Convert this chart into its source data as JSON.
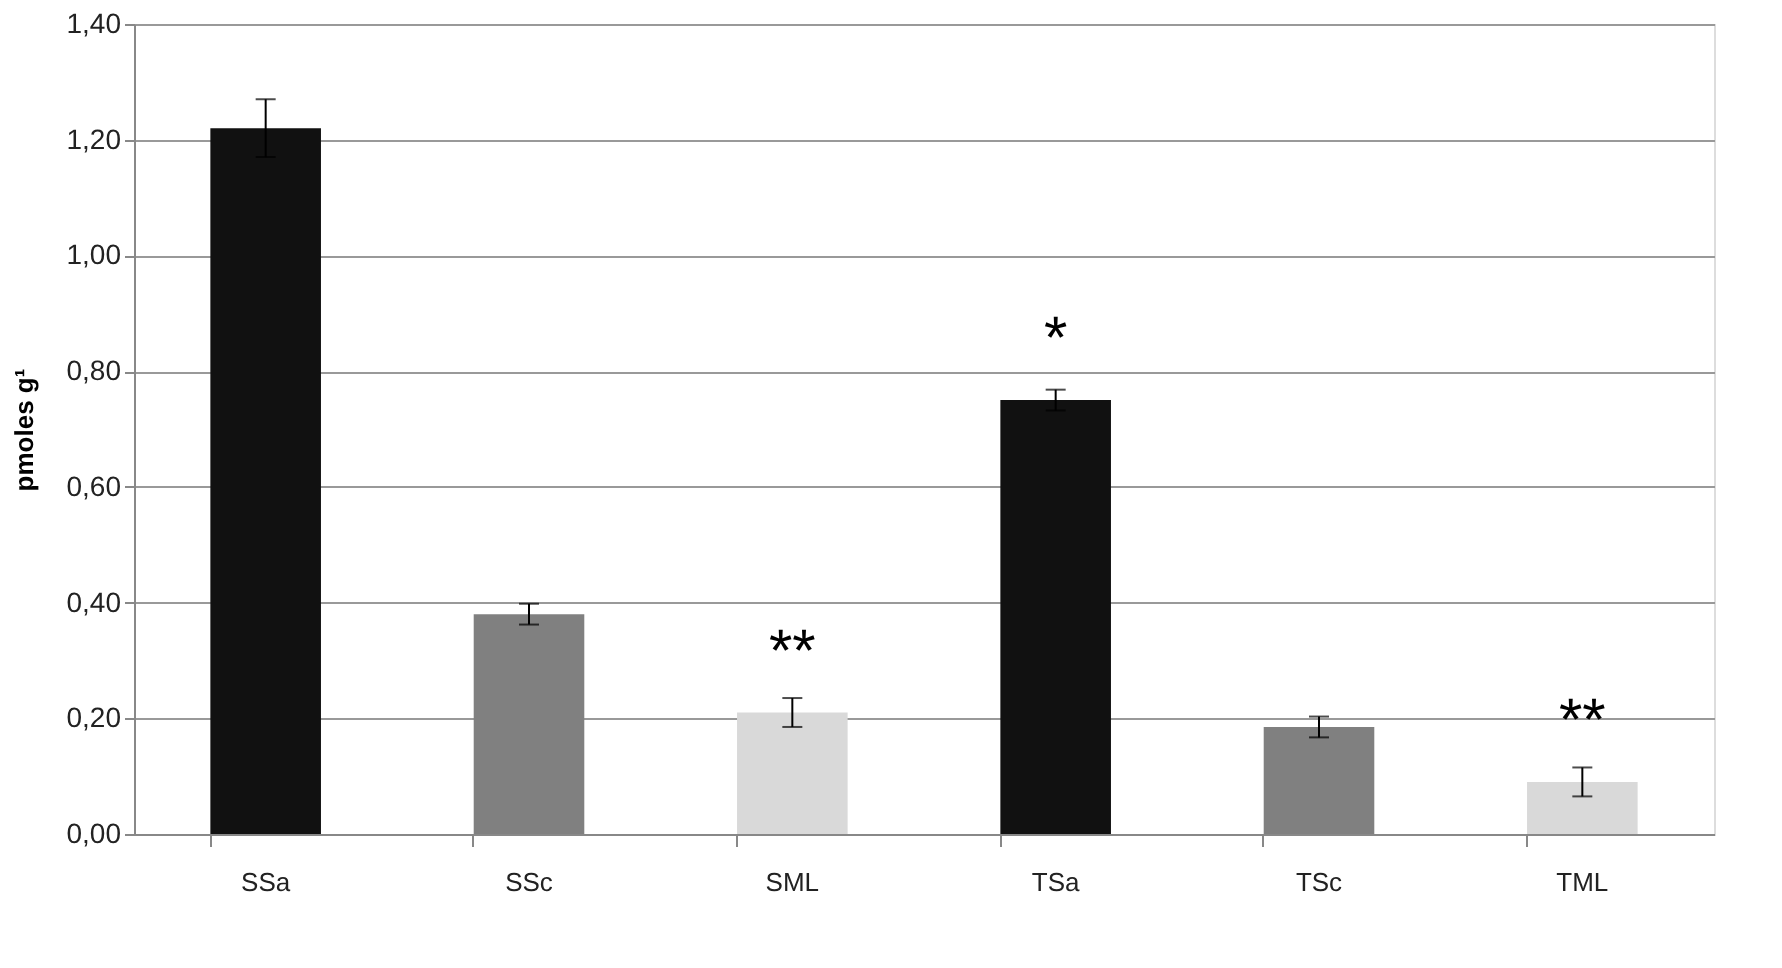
{
  "chart_data": {
    "type": "bar",
    "ylabel": "pmoles g¹",
    "categories": [
      "SSa",
      "SSc",
      "SML",
      "TSa",
      "TSc",
      "TML"
    ],
    "values": [
      1.22,
      0.38,
      0.21,
      0.75,
      0.185,
      0.09
    ],
    "errors": [
      0.05,
      0.018,
      0.025,
      0.018,
      0.018,
      0.025
    ],
    "colors": [
      "#111111",
      "#808080",
      "#d9d9d9",
      "#111111",
      "#808080",
      "#d9d9d9"
    ],
    "ylim": [
      0,
      1.4
    ],
    "yticks": [
      {
        "value": 0,
        "label": "0,00"
      },
      {
        "value": 0.2,
        "label": "0,20"
      },
      {
        "value": 0.4,
        "label": "0,40"
      },
      {
        "value": 0.6,
        "label": "0,60"
      },
      {
        "value": 0.8,
        "label": "0,80"
      },
      {
        "value": 1.0,
        "label": "1,00"
      },
      {
        "value": 1.2,
        "label": "1,20"
      },
      {
        "value": 1.4,
        "label": "1,40"
      }
    ],
    "grid": "y",
    "annotations": [
      {
        "text": "**",
        "x": "SML",
        "y": 0.21
      },
      {
        "text": "*",
        "x": "TSa",
        "y": 0.75
      },
      {
        "text": "**",
        "x": "TML",
        "y": 0.09
      }
    ]
  }
}
